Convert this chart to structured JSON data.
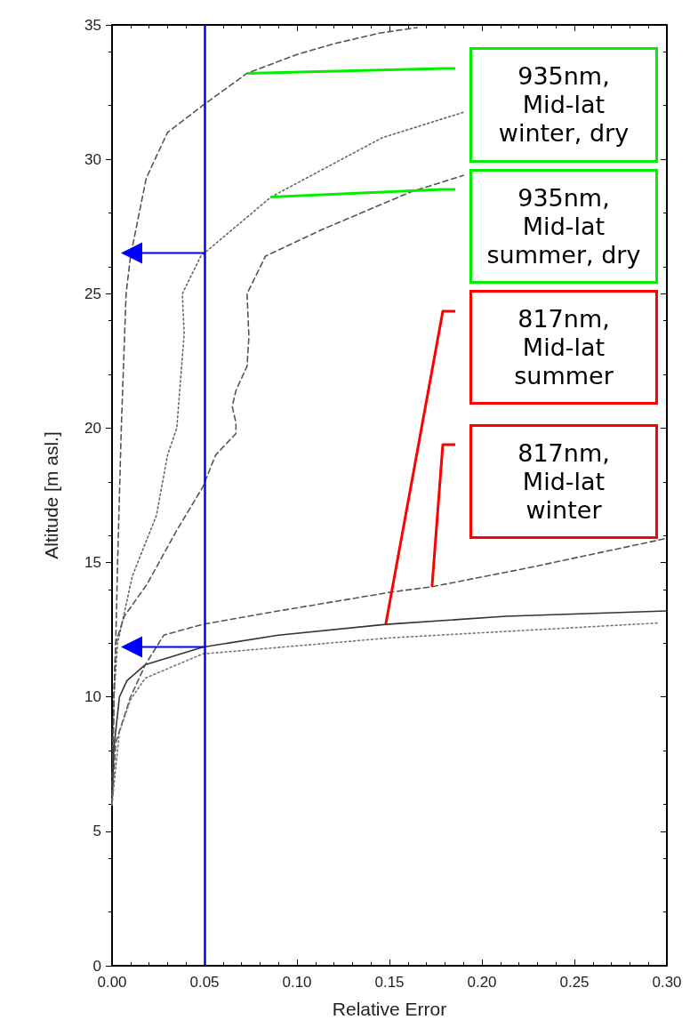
{
  "chart_data": {
    "type": "line",
    "xlabel": "Relative Error",
    "ylabel": "Altitude [m asl.]",
    "xlim": [
      0,
      0.3
    ],
    "xticks": [
      {
        "value": 0,
        "label": "0.00"
      },
      {
        "value": 0.05,
        "label": "0.05"
      },
      {
        "value": 0.1,
        "label": "0.10"
      },
      {
        "value": 0.15,
        "label": "0.15"
      },
      {
        "value": 0.2,
        "label": "0.20"
      },
      {
        "value": 0.25,
        "label": "0.25"
      },
      {
        "value": 0.3,
        "label": "0.30"
      }
    ],
    "ylim": [
      0,
      35
    ],
    "yticks": [
      0,
      5,
      10,
      15,
      20,
      25,
      30,
      35
    ],
    "grid": false,
    "marker": "none",
    "series": [
      {
        "color": "#555555",
        "line_style": "dashed",
        "x": [
          0,
          0.001,
          0.002,
          0.003,
          0.005,
          0.0076,
          0.01,
          0.0185,
          0.03,
          0.049,
          0.073,
          0.1,
          0.12,
          0.145,
          0.165
        ],
        "values": [
          6,
          10,
          12,
          15,
          20,
          25,
          26.4,
          29.3,
          31,
          32,
          33.2,
          33.9,
          34.3,
          34.7,
          34.9
        ]
      },
      {
        "color": "#666666",
        "line_style": "dotted",
        "x": [
          0,
          0.001,
          0.003,
          0.011,
          0.024,
          0.03,
          0.035,
          0.039,
          0.038,
          0.048,
          0.086,
          0.146,
          0.19
        ],
        "values": [
          6,
          10,
          12,
          14.5,
          16.75,
          19,
          20,
          23.5,
          25,
          26.4,
          28.6,
          30.8,
          31.75
        ]
      },
      {
        "color": "#555555",
        "line_style": "dashed",
        "x": [
          0,
          0.001,
          0.002,
          0.0066,
          0.019,
          0.035,
          0.049,
          0.056,
          0.067,
          0.067,
          0.065,
          0.067,
          0.073,
          0.074,
          0.073,
          0.083,
          0.114,
          0.162,
          0.19
        ],
        "values": [
          6,
          10,
          12,
          13,
          14.2,
          16.2,
          17.8,
          19,
          19.8,
          20.2,
          20.8,
          21.4,
          22.3,
          23.4,
          25,
          26.4,
          27.4,
          28.8,
          29.4
        ]
      },
      {
        "color": "#333333",
        "line_style": "solid",
        "x": [
          0,
          0.001,
          0.004,
          0.008,
          0.018,
          0.049,
          0.09,
          0.148,
          0.213,
          0.3
        ],
        "values": [
          6,
          8.1,
          10,
          10.6,
          11.2,
          11.85,
          12.3,
          12.7,
          13,
          13.2
        ]
      },
      {
        "color": "#555555",
        "line_style": "dashed",
        "x": [
          0,
          0.002,
          0.01,
          0.018,
          0.028,
          0.049,
          0.09,
          0.151,
          0.173,
          0.225,
          0.3
        ],
        "values": [
          6,
          8.3,
          10,
          11.2,
          12.3,
          12.7,
          13.2,
          13.9,
          14.1,
          14.8,
          15.9
        ]
      },
      {
        "color": "#777777",
        "line_style": "dotted",
        "x": [
          0,
          0.004,
          0.01,
          0.018,
          0.049,
          0.151,
          0.295
        ],
        "values": [
          6,
          8.7,
          9.9,
          10.7,
          11.6,
          12.2,
          12.75
        ]
      }
    ],
    "ref_lines": [
      {
        "axis": "x",
        "value": 0.05,
        "color": "#0000ff",
        "line_style": "solid"
      }
    ],
    "annotations": [
      "935nm,\nMid-lat\nwinter, dry",
      "935nm,\nMid-lat\nsummer, dry",
      "817nm,\nMid-lat\nsummer",
      "817nm,\nMid-lat\nwinter"
    ]
  }
}
